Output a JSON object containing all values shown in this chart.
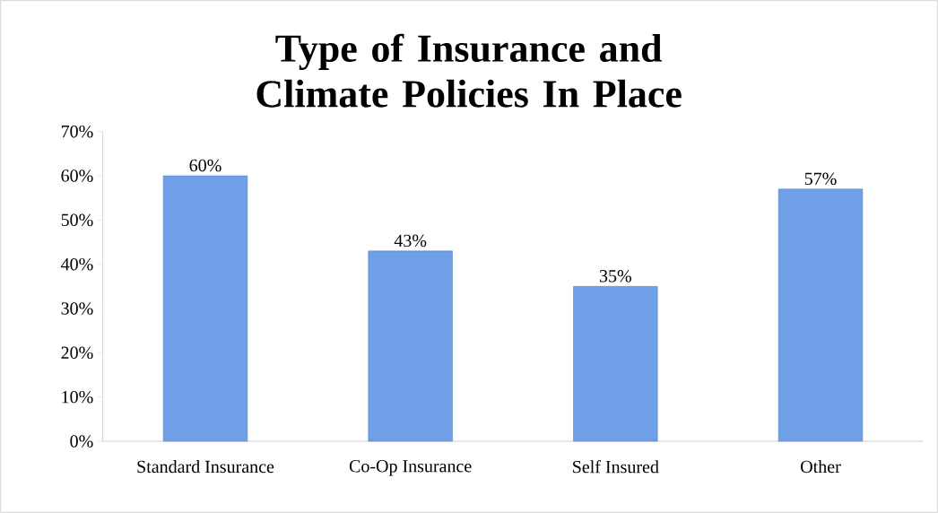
{
  "chart_data": {
    "type": "bar",
    "title": "Type of Insurance and Climate Policies In Place",
    "categories": [
      "Standard Insurance",
      "Co-Op Insurance",
      "Self Insured",
      "Other"
    ],
    "values": [
      60,
      43,
      35,
      57
    ],
    "value_labels": [
      "60%",
      "43%",
      "35%",
      "57%"
    ],
    "color": "#6f9fe6",
    "ylim": [
      0,
      70
    ],
    "yticks": [
      {
        "value": 0,
        "label": "0%"
      },
      {
        "value": 10,
        "label": "10%"
      },
      {
        "value": 20,
        "label": "20%"
      },
      {
        "value": 30,
        "label": "30%"
      },
      {
        "value": 40,
        "label": "40%"
      },
      {
        "value": 50,
        "label": "50%"
      },
      {
        "value": 60,
        "label": "60%"
      },
      {
        "value": 70,
        "label": "70%"
      }
    ],
    "grid": false
  }
}
